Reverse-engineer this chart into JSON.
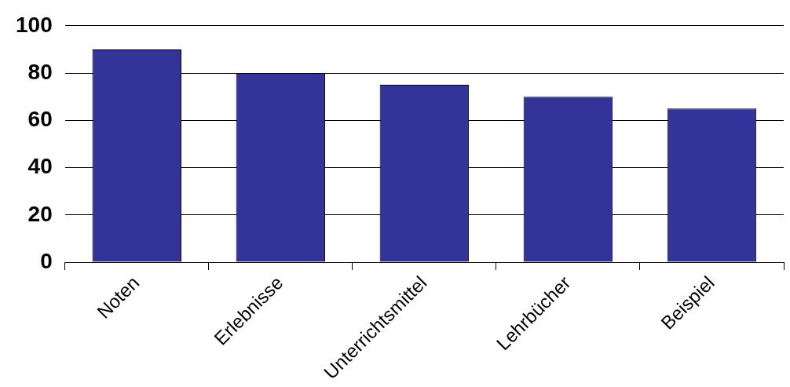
{
  "chart_data": {
    "type": "bar",
    "categories": [
      "Noten",
      "Erlebnisse",
      "Unterrichtsmittel",
      "Lehrbücher",
      "Beispiel"
    ],
    "values": [
      90,
      80,
      75,
      70,
      65
    ],
    "color": "#333399",
    "ylim": [
      0,
      100
    ],
    "yticks": [
      0,
      20,
      40,
      60,
      80,
      100
    ],
    "grid": "y"
  }
}
